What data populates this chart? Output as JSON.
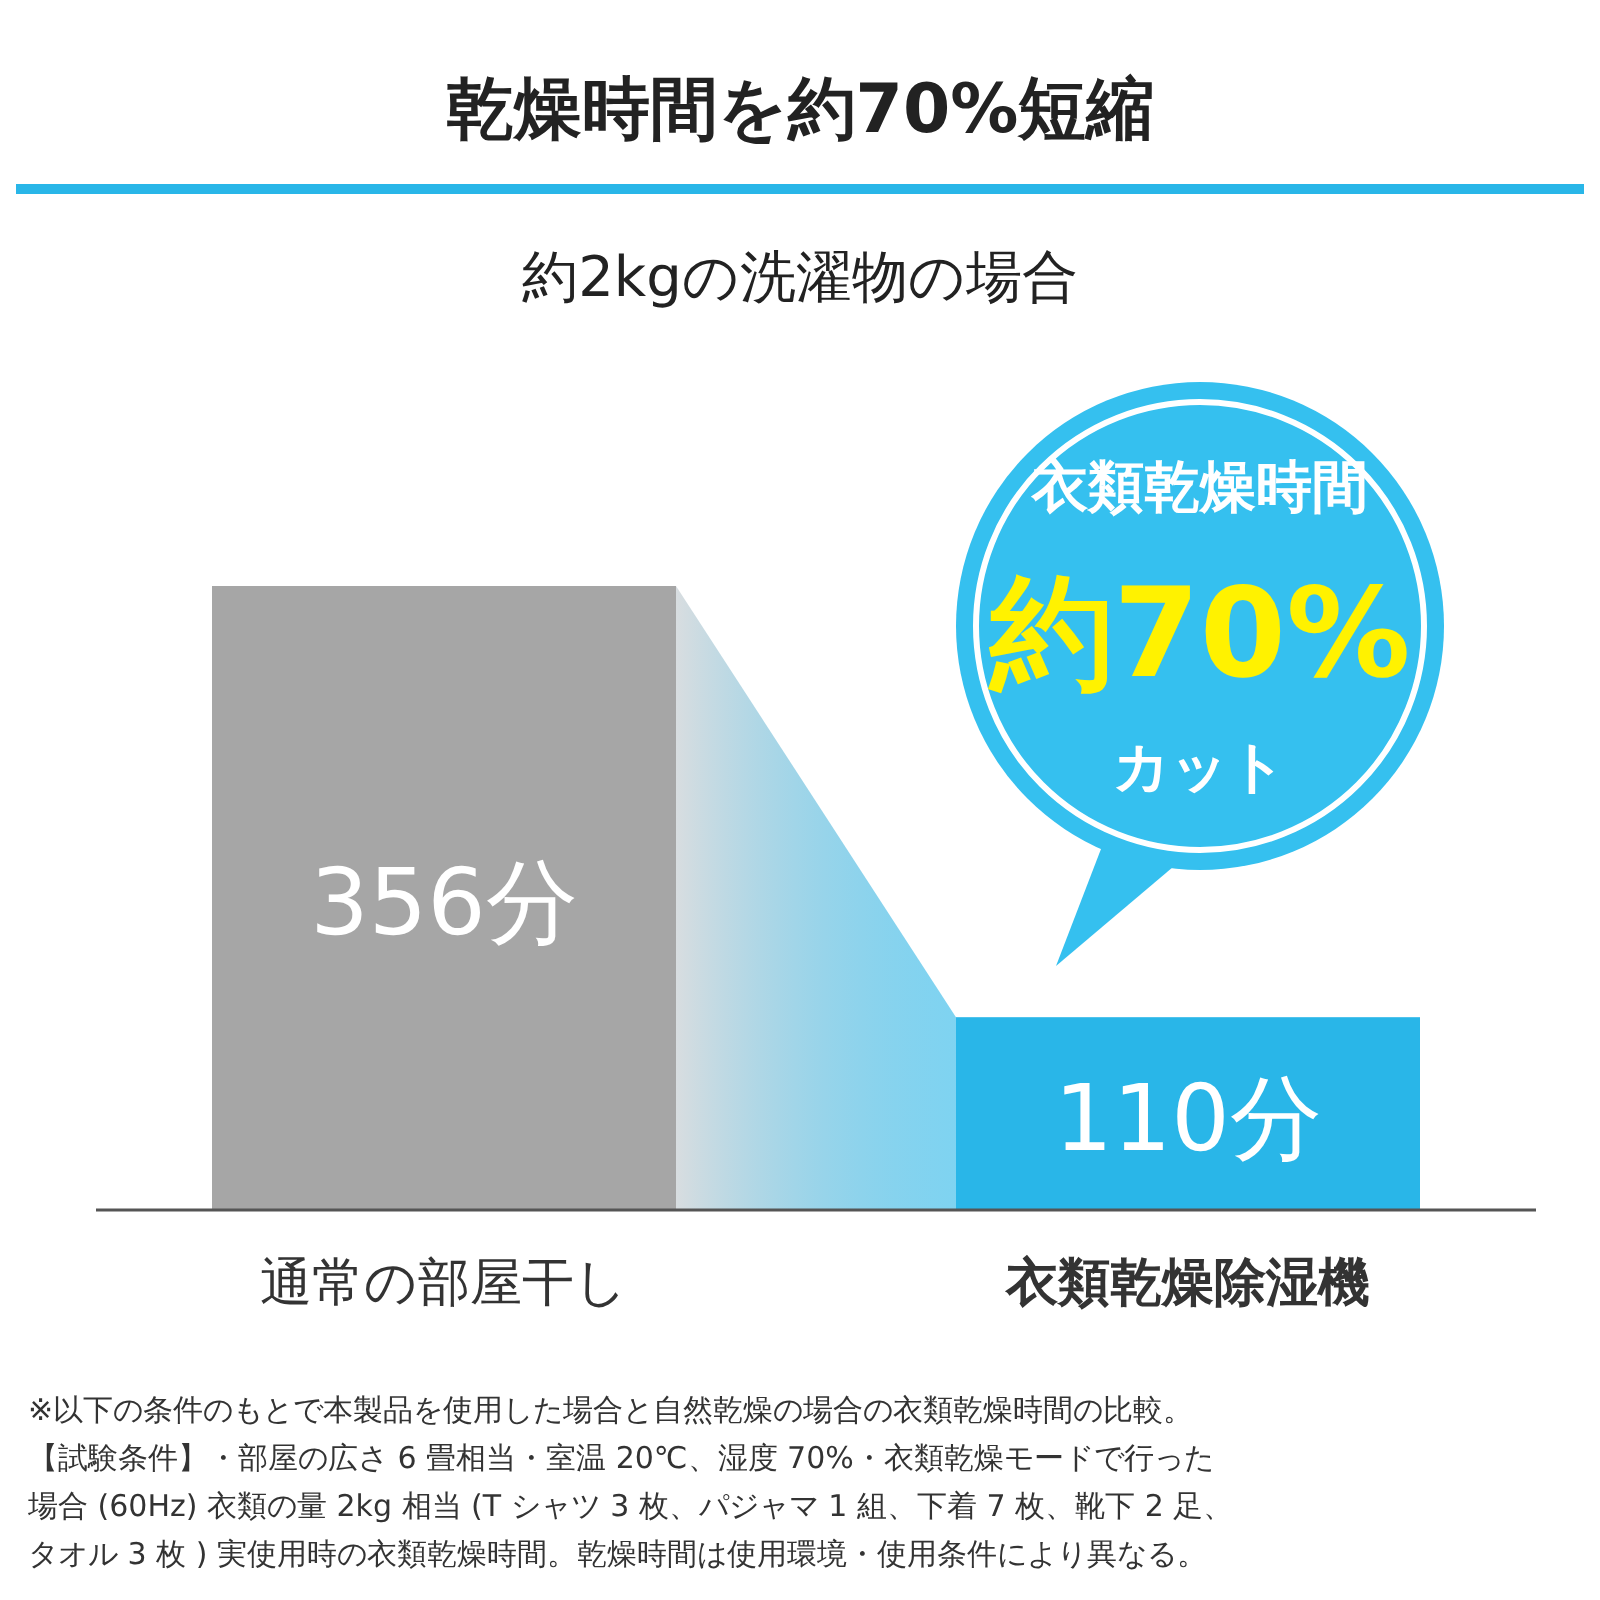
{
  "chart_data": {
    "type": "bar",
    "title": "乾燥時間を約70%短縮",
    "subtitle": "約2kgの洗濯物の場合",
    "categories": [
      "通常の部屋干し",
      "衣類乾燥除湿機"
    ],
    "values": [
      356,
      110
    ],
    "colors": [
      "#a6a6a6",
      "#29b6e8"
    ],
    "value_labels": [
      "356分",
      "110分"
    ],
    "annotations": [
      "衣類乾燥時間",
      "約70%",
      "カット",
      "※以下の条件のもとで本製品を使用した場合と自然乾燥の場合の衣類乾燥時間の比較。",
      "【試験条件】・部屋の広さ 6 畳相当・室温 20℃、湿度 70%・衣類乾燥モードで行った",
      "場合 (60Hz) 衣類の量 2kg 相当 (T シャツ 3 枚、パジャマ 1 組、下着 7 枚、靴下 2 足、",
      "タオル 3 枚 ) 実使用時の衣類乾燥時間。乾燥時間は使用環境・使用条件により異なる。"
    ]
  }
}
